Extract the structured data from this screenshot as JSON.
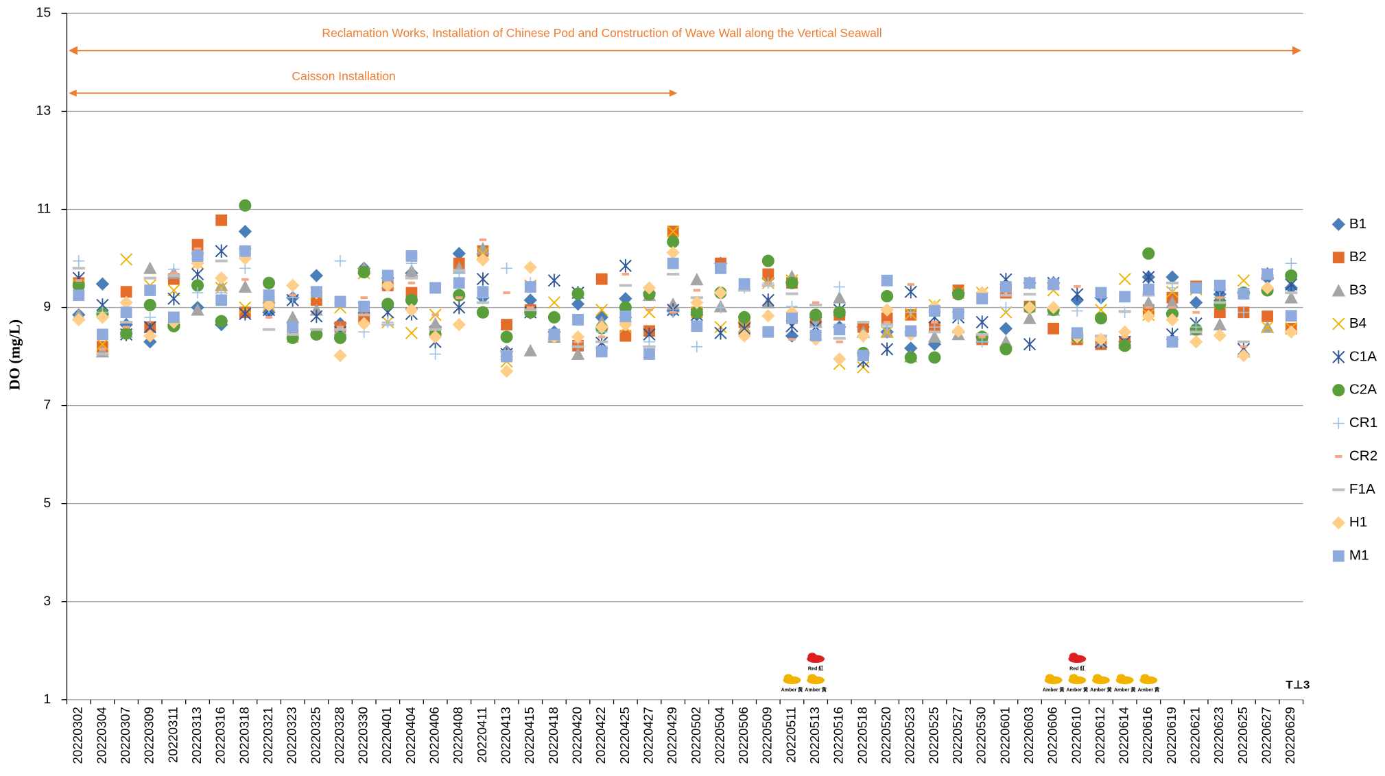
{
  "chart_data": {
    "type": "scatter",
    "y_label": "DO (mg/L)",
    "annotations": [
      {
        "text": "Reclamation Works, Installation of Chinese Pod and Construction of Wave Wall along the Vertical Seawall"
      },
      {
        "text": "Caisson Installation"
      }
    ],
    "rainstorm_signals": [
      {
        "category": "20220511",
        "label": "Amber 黃"
      },
      {
        "category": "20220513",
        "label": "Amber 黃"
      },
      {
        "category": "20220513",
        "label": "Red 紅"
      },
      {
        "category": "20220606",
        "label": "Amber 黃"
      },
      {
        "category": "20220610",
        "label": "Amber 黃"
      },
      {
        "category": "20220610",
        "label": "Red 紅"
      },
      {
        "category": "20220612",
        "label": "Amber 黃"
      },
      {
        "category": "20220614",
        "label": "Amber 黃"
      },
      {
        "category": "20220616",
        "label": "Amber 黃"
      }
    ],
    "corner_mark": "T⊥3",
    "categories": [
      "20220302",
      "20220304",
      "20220307",
      "20220309",
      "20220311",
      "20220313",
      "20220316",
      "20220318",
      "20220321",
      "20220323",
      "20220325",
      "20220328",
      "20220330",
      "20220401",
      "20220404",
      "20220406",
      "20220408",
      "20220411",
      "20220413",
      "20220415",
      "20220418",
      "20220420",
      "20220422",
      "20220425",
      "20220427",
      "20220429",
      "20220502",
      "20220504",
      "20220506",
      "20220509",
      "20220511",
      "20220513",
      "20220516",
      "20220518",
      "20220520",
      "20220523",
      "20220525",
      "20220527",
      "20220530",
      "20220601",
      "20220603",
      "20220606",
      "20220610",
      "20220612",
      "20220614",
      "20220616",
      "20220619",
      "20220621",
      "20220623",
      "20220625",
      "20220627",
      "20220629"
    ],
    "ylim": [
      1,
      15
    ],
    "yticks": [
      1,
      3,
      5,
      7,
      9,
      11,
      13,
      15
    ],
    "grid": true,
    "legend": "right",
    "series": [
      {
        "name": "B1",
        "color": "#4a7ebb",
        "marker": "diamond",
        "values": [
          8.85,
          9.48,
          8.65,
          8.3,
          8.65,
          9.0,
          8.65,
          10.55,
          8.9,
          9.2,
          9.65,
          8.67,
          9.8,
          9.6,
          9.7,
          8.6,
          10.1,
          9.2,
          8.1,
          9.15,
          8.5,
          9.07,
          8.8,
          9.18,
          9.3,
          8.93,
          8.85,
          9.9,
          8.7,
          9.6,
          8.42,
          8.8,
          8.6,
          8.6,
          8.5,
          8.17,
          8.25,
          9.3,
          8.4,
          8.57,
          9.5,
          9.5,
          9.15,
          9.2,
          8.3,
          9.62,
          9.62,
          9.1,
          9.27,
          9.3,
          9.6,
          9.4
        ]
      },
      {
        "name": "B2",
        "color": "#e36c2b",
        "marker": "square",
        "values": [
          9.5,
          8.2,
          9.32,
          8.6,
          9.58,
          10.28,
          10.78,
          8.9,
          9.1,
          8.6,
          9.15,
          8.6,
          8.8,
          9.45,
          9.3,
          8.5,
          9.9,
          10.15,
          8.65,
          8.95,
          8.4,
          8.22,
          9.58,
          8.42,
          8.52,
          10.55,
          8.9,
          9.9,
          8.7,
          9.68,
          9.5,
          8.7,
          8.85,
          8.6,
          8.78,
          8.85,
          8.6,
          9.35,
          8.35,
          9.3,
          9.02,
          8.57,
          8.35,
          8.25,
          8.3,
          8.95,
          9.2,
          9.43,
          8.9,
          8.9,
          8.82,
          8.57
        ]
      },
      {
        "name": "B3",
        "color": "#a5a5a5",
        "marker": "triangle",
        "values": [
          8.85,
          8.1,
          8.5,
          9.8,
          9.7,
          8.95,
          9.45,
          9.42,
          9.2,
          8.8,
          8.95,
          8.55,
          9.8,
          9.5,
          9.75,
          8.67,
          9.8,
          10.2,
          8.1,
          8.12,
          8.4,
          8.05,
          8.7,
          8.9,
          9.25,
          9.07,
          9.57,
          9.02,
          8.6,
          9.1,
          9.63,
          8.7,
          9.2,
          8.5,
          8.5,
          8.0,
          8.4,
          8.45,
          8.4,
          8.3,
          8.78,
          8.95,
          8.4,
          8.3,
          8.27,
          9.1,
          9.1,
          8.55,
          8.65,
          8.1,
          8.6,
          9.2
        ]
      },
      {
        "name": "B4",
        "color": "#f0b400",
        "marker": "x",
        "values": [
          9.45,
          8.25,
          9.98,
          9.45,
          9.35,
          9.9,
          9.4,
          9.0,
          9.05,
          8.4,
          9.3,
          9.0,
          9.7,
          8.7,
          8.48,
          8.85,
          9.0,
          10.1,
          7.9,
          9.45,
          9.1,
          9.3,
          8.95,
          8.6,
          8.9,
          10.55,
          8.9,
          8.6,
          8.6,
          9.5,
          9.55,
          8.6,
          7.85,
          7.78,
          8.5,
          8.87,
          9.05,
          9.3,
          9.3,
          8.9,
          9.5,
          9.35,
          8.4,
          8.95,
          9.58,
          8.85,
          9.32,
          9.37,
          9.1,
          9.55,
          8.6,
          8.58
        ]
      },
      {
        "name": "C1A",
        "color": "#2f5597",
        "marker": "asterisk",
        "values": [
          9.6,
          9.05,
          8.45,
          8.6,
          9.18,
          9.68,
          10.15,
          8.87,
          8.95,
          9.15,
          8.82,
          8.5,
          9.0,
          8.9,
          8.87,
          8.3,
          9.0,
          9.58,
          8.05,
          8.9,
          9.55,
          9.3,
          8.28,
          9.85,
          8.45,
          8.95,
          8.85,
          8.48,
          8.57,
          9.15,
          8.62,
          8.6,
          8.95,
          7.9,
          8.15,
          9.32,
          8.8,
          8.8,
          8.7,
          9.57,
          8.25,
          9.5,
          9.27,
          8.3,
          8.3,
          9.62,
          8.45,
          8.67,
          9.25,
          8.15,
          9.68,
          9.47
        ]
      },
      {
        "name": "C2A",
        "color": "#5a9e3c",
        "marker": "circle",
        "values": [
          9.45,
          8.87,
          8.47,
          9.05,
          8.62,
          9.45,
          8.72,
          11.08,
          9.5,
          8.38,
          8.45,
          8.38,
          9.72,
          9.07,
          9.15,
          8.45,
          9.25,
          8.9,
          8.4,
          8.9,
          8.8,
          9.28,
          8.58,
          9.0,
          9.27,
          10.34,
          8.9,
          9.3,
          8.8,
          9.95,
          9.5,
          8.85,
          8.9,
          8.07,
          9.23,
          7.98,
          7.98,
          9.27,
          8.4,
          8.15,
          9.0,
          8.95,
          8.4,
          8.78,
          8.22,
          10.1,
          8.87,
          8.55,
          9.07,
          9.3,
          9.35,
          9.65
        ]
      },
      {
        "name": "CR1",
        "color": "#9dc3e6",
        "marker": "plus",
        "values": [
          9.95,
          8.9,
          8.9,
          8.8,
          9.78,
          9.3,
          9.3,
          9.8,
          9.0,
          9.2,
          9.3,
          9.95,
          8.5,
          8.7,
          9.9,
          8.05,
          9.7,
          9.2,
          9.8,
          9.5,
          8.4,
          8.3,
          8.5,
          8.7,
          8.3,
          8.9,
          8.2,
          9.0,
          9.4,
          9.5,
          9.02,
          8.6,
          9.42,
          8.4,
          8.6,
          8.9,
          8.6,
          8.8,
          8.3,
          9.0,
          9.5,
          9.5,
          8.93,
          9.2,
          8.9,
          9.3,
          9.4,
          8.6,
          9.2,
          8.9,
          9.4,
          9.9
        ]
      },
      {
        "name": "CR2",
        "color": "#f4a582",
        "marker": "dash",
        "values": [
          9.55,
          8.15,
          8.6,
          9.35,
          9.7,
          10.2,
          9.1,
          9.57,
          8.8,
          9.25,
          9.3,
          8.6,
          9.2,
          9.55,
          9.5,
          8.85,
          9.2,
          10.38,
          9.3,
          9.0,
          8.35,
          8.3,
          8.4,
          9.68,
          8.95,
          8.9,
          9.35,
          9.85,
          9.35,
          9.5,
          8.35,
          9.1,
          8.3,
          8.4,
          8.7,
          9.47,
          8.7,
          8.85,
          8.4,
          9.35,
          9.0,
          9.45,
          9.43,
          8.4,
          8.4,
          9.0,
          9.0,
          8.9,
          9.2,
          8.2,
          9.7,
          8.5
        ]
      },
      {
        "name": "F1A",
        "color": "#bfbfbf",
        "marker": "longdash",
        "values": [
          9.8,
          8.05,
          8.7,
          9.6,
          9.65,
          10.1,
          9.95,
          10.2,
          8.55,
          8.45,
          8.55,
          8.55,
          8.85,
          8.65,
          9.6,
          8.55,
          9.75,
          9.1,
          8.1,
          8.95,
          8.35,
          8.2,
          8.3,
          9.45,
          8.2,
          9.68,
          9.2,
          9.3,
          9.35,
          9.45,
          9.28,
          9.05,
          8.37,
          8.7,
          8.65,
          8.5,
          8.5,
          8.5,
          8.45,
          9.25,
          9.27,
          9.4,
          8.45,
          8.42,
          8.92,
          9.25,
          9.5,
          8.5,
          9.1,
          8.3,
          9.65,
          9.3
        ]
      },
      {
        "name": "H1",
        "color": "#ffcf8a",
        "marker": "diamond",
        "values": [
          8.75,
          8.8,
          9.1,
          8.42,
          8.7,
          9.9,
          9.6,
          10.0,
          9.05,
          9.45,
          9.3,
          8.02,
          8.67,
          9.45,
          8.95,
          8.4,
          8.65,
          9.97,
          7.7,
          9.82,
          8.4,
          8.4,
          8.6,
          8.65,
          9.4,
          10.12,
          9.1,
          9.3,
          8.42,
          8.83,
          8.9,
          8.35,
          7.95,
          8.42,
          8.95,
          8.45,
          9.02,
          8.52,
          9.3,
          9.4,
          9.0,
          9.0,
          8.4,
          8.35,
          8.5,
          8.82,
          8.75,
          8.3,
          8.43,
          8.02,
          9.4,
          8.5
        ]
      },
      {
        "name": "M1",
        "color": "#8faadc",
        "marker": "square",
        "values": [
          9.25,
          8.45,
          8.9,
          9.35,
          8.8,
          10.05,
          9.15,
          10.15,
          9.25,
          8.6,
          9.32,
          9.12,
          9.02,
          9.65,
          10.05,
          9.4,
          9.5,
          9.32,
          8.0,
          9.42,
          8.45,
          8.75,
          8.1,
          8.82,
          8.05,
          9.9,
          8.62,
          9.8,
          9.48,
          8.5,
          8.78,
          8.43,
          8.55,
          8.02,
          9.55,
          8.52,
          8.93,
          8.87,
          9.18,
          9.42,
          9.5,
          9.47,
          8.48,
          9.3,
          9.22,
          9.37,
          8.3,
          9.4,
          9.45,
          9.28,
          9.68,
          8.83
        ]
      }
    ]
  }
}
